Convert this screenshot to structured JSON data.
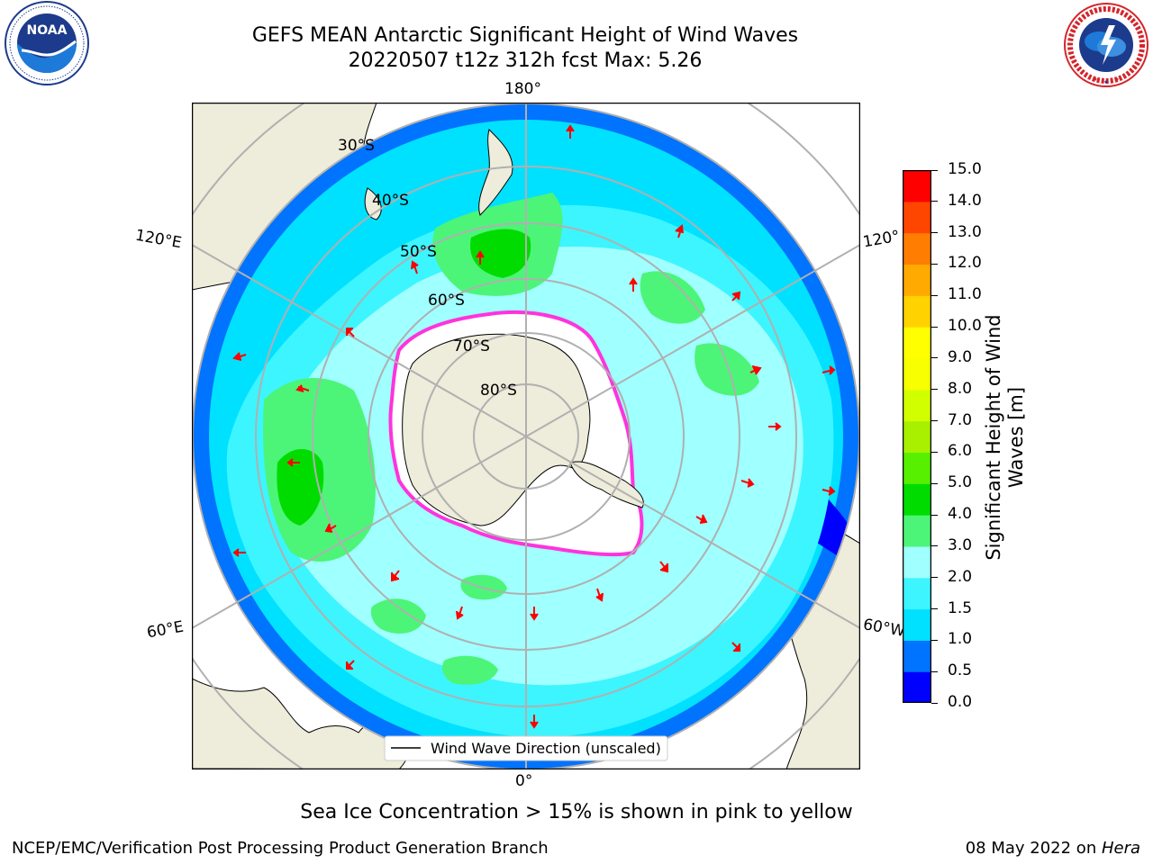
{
  "header": {
    "title_line1": "GEFS MEAN Antarctic Significant Height of Wind Waves",
    "title_line2": "20220507 t12z 312h fcst   Max: 5.26"
  },
  "logos": {
    "left": {
      "text": "NOAA",
      "ring_text": "NATIONAL OCEANIC AND ATMOSPHERIC ADMINISTRATION · U.S. DEPARTMENT OF COMMERCE"
    },
    "right": {
      "ring_text": "NATIONAL WEATHER SERVICE"
    }
  },
  "map": {
    "lon_labels": {
      "top": "180°",
      "bottom": "0°",
      "left_upper": "120°E",
      "left_lower": "60°E",
      "right_upper": "120°",
      "right_lower": "60°W"
    },
    "lat_labels": [
      "30°S",
      "40°S",
      "50°S",
      "60°S",
      "70°S",
      "80°S"
    ],
    "legend": "Wind Wave Direction (unscaled)",
    "colors": {
      "land": "#eeecda",
      "ice": "#ffffff",
      "ice_edge": "#ff33dd",
      "grid": "#b0b0b0",
      "arrow": "#ff0000"
    }
  },
  "colorbar": {
    "label": "Significant Height of Wind Waves [m]",
    "ticks": [
      "0.0",
      "0.5",
      "1.0",
      "1.5",
      "2.0",
      "3.0",
      "4.0",
      "5.0",
      "6.0",
      "7.0",
      "8.0",
      "9.0",
      "10.0",
      "11.0",
      "12.0",
      "13.0",
      "14.0",
      "15.0"
    ],
    "colors": [
      "#0000ff",
      "#0073ff",
      "#00e1ff",
      "#3cf5ff",
      "#a0ffff",
      "#4cf577",
      "#00dc00",
      "#57f000",
      "#a8f000",
      "#d2ff00",
      "#f7ff00",
      "#ffff00",
      "#ffd200",
      "#ffaa00",
      "#ff7d00",
      "#ff4600",
      "#ff0000"
    ]
  },
  "annotation": "Sea Ice Concentration > 15% is shown in pink to yellow",
  "footer": {
    "left": "NCEP/EMC/Verification Post Processing Product Generation Branch",
    "right_prefix": "08 May 2022 on ",
    "right_machine": "Hera"
  }
}
